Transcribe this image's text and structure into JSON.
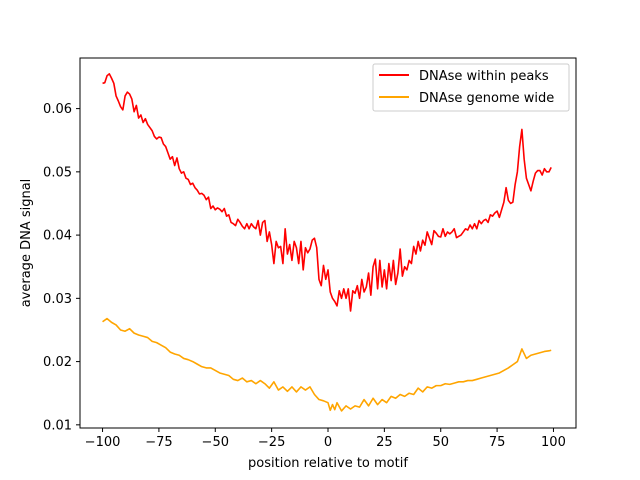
{
  "chart_data": {
    "type": "line",
    "title": "",
    "xlabel": "position relative to motif",
    "ylabel": "average DNA signal",
    "xlim": [
      -110,
      110
    ],
    "ylim": [
      0.0095,
      0.068
    ],
    "xticks": [
      -100,
      -75,
      -50,
      -25,
      0,
      25,
      50,
      75,
      100
    ],
    "xtick_labels": [
      "−100",
      "−75",
      "−50",
      "−25",
      "0",
      "25",
      "50",
      "75",
      "100"
    ],
    "yticks": [
      0.01,
      0.02,
      0.03,
      0.04,
      0.05,
      0.06
    ],
    "ytick_labels": [
      "0.01",
      "0.02",
      "0.03",
      "0.04",
      "0.05",
      "0.06"
    ],
    "grid": false,
    "legend": {
      "position": "top-right"
    },
    "series": [
      {
        "name": "DNAse within peaks",
        "color": "#ff0000",
        "points": [
          [
            -100,
            0.064
          ],
          [
            -99,
            0.0641
          ],
          [
            -98,
            0.0652
          ],
          [
            -97,
            0.0655
          ],
          [
            -96,
            0.0648
          ],
          [
            -95,
            0.064
          ],
          [
            -94,
            0.062
          ],
          [
            -93,
            0.0612
          ],
          [
            -92,
            0.0603
          ],
          [
            -91,
            0.0598
          ],
          [
            -90,
            0.062
          ],
          [
            -89,
            0.0626
          ],
          [
            -88,
            0.0623
          ],
          [
            -87,
            0.0615
          ],
          [
            -86,
            0.0595
          ],
          [
            -85,
            0.0605
          ],
          [
            -84,
            0.0585
          ],
          [
            -83,
            0.059
          ],
          [
            -82,
            0.0578
          ],
          [
            -81,
            0.0584
          ],
          [
            -80,
            0.0575
          ],
          [
            -79,
            0.057
          ],
          [
            -78,
            0.0565
          ],
          [
            -77,
            0.0556
          ],
          [
            -76,
            0.0552
          ],
          [
            -75,
            0.0555
          ],
          [
            -74,
            0.0554
          ],
          [
            -73,
            0.0544
          ],
          [
            -72,
            0.054
          ],
          [
            -71,
            0.053
          ],
          [
            -70,
            0.052
          ],
          [
            -69,
            0.0524
          ],
          [
            -68,
            0.051
          ],
          [
            -67,
            0.0522
          ],
          [
            -66,
            0.0505
          ],
          [
            -65,
            0.0498
          ],
          [
            -64,
            0.05
          ],
          [
            -63,
            0.049
          ],
          [
            -62,
            0.0488
          ],
          [
            -61,
            0.048
          ],
          [
            -60,
            0.0482
          ],
          [
            -59,
            0.0475
          ],
          [
            -58,
            0.0471
          ],
          [
            -57,
            0.0465
          ],
          [
            -56,
            0.0466
          ],
          [
            -55,
            0.0463
          ],
          [
            -54,
            0.0456
          ],
          [
            -53,
            0.046
          ],
          [
            -52,
            0.0442
          ],
          [
            -51,
            0.0446
          ],
          [
            -50,
            0.044
          ],
          [
            -49,
            0.0443
          ],
          [
            -48,
            0.0441
          ],
          [
            -47,
            0.0437
          ],
          [
            -46,
            0.0442
          ],
          [
            -45,
            0.043
          ],
          [
            -44,
            0.0432
          ],
          [
            -43,
            0.042
          ],
          [
            -42,
            0.0418
          ],
          [
            -41,
            0.0415
          ],
          [
            -40,
            0.0425
          ],
          [
            -39,
            0.042
          ],
          [
            -38,
            0.0414
          ],
          [
            -37,
            0.041
          ],
          [
            -36,
            0.0418
          ],
          [
            -35,
            0.041
          ],
          [
            -34,
            0.0418
          ],
          [
            -33,
            0.0413
          ],
          [
            -32,
            0.041
          ],
          [
            -31,
            0.0423
          ],
          [
            -30,
            0.04
          ],
          [
            -29,
            0.042
          ],
          [
            -28,
            0.0423
          ],
          [
            -27,
            0.039
          ],
          [
            -26,
            0.0405
          ],
          [
            -25,
            0.0385
          ],
          [
            -24,
            0.0355
          ],
          [
            -23,
            0.039
          ],
          [
            -22,
            0.038
          ],
          [
            -21,
            0.0382
          ],
          [
            -20,
            0.0355
          ],
          [
            -19,
            0.041
          ],
          [
            -18,
            0.037
          ],
          [
            -17,
            0.0385
          ],
          [
            -16,
            0.036
          ],
          [
            -15,
            0.039
          ],
          [
            -14,
            0.038
          ],
          [
            -13,
            0.0355
          ],
          [
            -12,
            0.039
          ],
          [
            -11,
            0.0345
          ],
          [
            -10,
            0.038
          ],
          [
            -9,
            0.0372
          ],
          [
            -8,
            0.0378
          ],
          [
            -7,
            0.0392
          ],
          [
            -6,
            0.0395
          ],
          [
            -5,
            0.038
          ],
          [
            -4,
            0.033
          ],
          [
            -3,
            0.032
          ],
          [
            -2,
            0.0352
          ],
          [
            -1,
            0.033
          ],
          [
            0,
            0.0345
          ],
          [
            1,
            0.031
          ],
          [
            2,
            0.03
          ],
          [
            3,
            0.0295
          ],
          [
            4,
            0.0288
          ],
          [
            5,
            0.0312
          ],
          [
            6,
            0.03
          ],
          [
            7,
            0.0315
          ],
          [
            8,
            0.03
          ],
          [
            9,
            0.0315
          ],
          [
            10,
            0.028
          ],
          [
            11,
            0.0312
          ],
          [
            12,
            0.0308
          ],
          [
            13,
            0.032
          ],
          [
            14,
            0.03
          ],
          [
            15,
            0.033
          ],
          [
            16,
            0.031
          ],
          [
            17,
            0.0318
          ],
          [
            18,
            0.034
          ],
          [
            19,
            0.0305
          ],
          [
            20,
            0.035
          ],
          [
            21,
            0.0362
          ],
          [
            22,
            0.0315
          ],
          [
            23,
            0.036
          ],
          [
            24,
            0.0318
          ],
          [
            25,
            0.0345
          ],
          [
            26,
            0.0315
          ],
          [
            27,
            0.0355
          ],
          [
            28,
            0.0328
          ],
          [
            29,
            0.036
          ],
          [
            30,
            0.0322
          ],
          [
            31,
            0.034
          ],
          [
            32,
            0.0378
          ],
          [
            33,
            0.0335
          ],
          [
            34,
            0.035
          ],
          [
            35,
            0.0345
          ],
          [
            36,
            0.036
          ],
          [
            37,
            0.0355
          ],
          [
            38,
            0.0382
          ],
          [
            39,
            0.037
          ],
          [
            40,
            0.039
          ],
          [
            41,
            0.0375
          ],
          [
            42,
            0.0392
          ],
          [
            43,
            0.0384
          ],
          [
            44,
            0.0405
          ],
          [
            45,
            0.0395
          ],
          [
            46,
            0.0385
          ],
          [
            47,
            0.0407
          ],
          [
            48,
            0.0403
          ],
          [
            49,
            0.0398
          ],
          [
            50,
            0.0397
          ],
          [
            51,
            0.041
          ],
          [
            52,
            0.0398
          ],
          [
            53,
            0.0405
          ],
          [
            54,
            0.0402
          ],
          [
            55,
            0.0405
          ],
          [
            56,
            0.041
          ],
          [
            57,
            0.0396
          ],
          [
            58,
            0.0398
          ],
          [
            59,
            0.04
          ],
          [
            60,
            0.0405
          ],
          [
            61,
            0.041
          ],
          [
            62,
            0.0408
          ],
          [
            63,
            0.0416
          ],
          [
            64,
            0.041
          ],
          [
            65,
            0.0418
          ],
          [
            66,
            0.041
          ],
          [
            67,
            0.0423
          ],
          [
            68,
            0.0418
          ],
          [
            69,
            0.0423
          ],
          [
            70,
            0.0425
          ],
          [
            71,
            0.042
          ],
          [
            72,
            0.0432
          ],
          [
            73,
            0.043
          ],
          [
            74,
            0.0435
          ],
          [
            75,
            0.0438
          ],
          [
            76,
            0.0428
          ],
          [
            77,
            0.044
          ],
          [
            78,
            0.0452
          ],
          [
            79,
            0.0475
          ],
          [
            80,
            0.0455
          ],
          [
            81,
            0.045
          ],
          [
            82,
            0.0452
          ],
          [
            83,
            0.048
          ],
          [
            84,
            0.05
          ],
          [
            85,
            0.054
          ],
          [
            86,
            0.0567
          ],
          [
            87,
            0.052
          ],
          [
            88,
            0.049
          ],
          [
            89,
            0.048
          ],
          [
            90,
            0.047
          ],
          [
            91,
            0.0485
          ],
          [
            92,
            0.0498
          ],
          [
            93,
            0.0502
          ],
          [
            94,
            0.0502
          ],
          [
            95,
            0.0495
          ],
          [
            96,
            0.0505
          ],
          [
            97,
            0.05
          ],
          [
            98,
            0.05
          ],
          [
            99,
            0.0507
          ]
        ]
      },
      {
        "name": "DNAse genome wide",
        "color": "#ffa500",
        "points": [
          [
            -100,
            0.0263
          ],
          [
            -98,
            0.0268
          ],
          [
            -96,
            0.0262
          ],
          [
            -94,
            0.0258
          ],
          [
            -92,
            0.025
          ],
          [
            -90,
            0.0248
          ],
          [
            -88,
            0.0252
          ],
          [
            -86,
            0.0245
          ],
          [
            -84,
            0.0242
          ],
          [
            -82,
            0.024
          ],
          [
            -80,
            0.0238
          ],
          [
            -78,
            0.0232
          ],
          [
            -76,
            0.023
          ],
          [
            -74,
            0.0226
          ],
          [
            -72,
            0.0222
          ],
          [
            -70,
            0.0215
          ],
          [
            -68,
            0.0212
          ],
          [
            -66,
            0.021
          ],
          [
            -64,
            0.0205
          ],
          [
            -62,
            0.0203
          ],
          [
            -60,
            0.02
          ],
          [
            -58,
            0.0196
          ],
          [
            -56,
            0.0192
          ],
          [
            -54,
            0.019
          ],
          [
            -52,
            0.019
          ],
          [
            -50,
            0.0186
          ],
          [
            -48,
            0.0182
          ],
          [
            -46,
            0.018
          ],
          [
            -44,
            0.0178
          ],
          [
            -42,
            0.0172
          ],
          [
            -40,
            0.017
          ],
          [
            -38,
            0.0174
          ],
          [
            -36,
            0.0168
          ],
          [
            -34,
            0.017
          ],
          [
            -32,
            0.0165
          ],
          [
            -30,
            0.017
          ],
          [
            -28,
            0.0165
          ],
          [
            -26,
            0.0158
          ],
          [
            -24,
            0.0168
          ],
          [
            -22,
            0.0155
          ],
          [
            -20,
            0.016
          ],
          [
            -18,
            0.0153
          ],
          [
            -16,
            0.016
          ],
          [
            -14,
            0.0152
          ],
          [
            -12,
            0.016
          ],
          [
            -10,
            0.0155
          ],
          [
            -8,
            0.016
          ],
          [
            -6,
            0.0148
          ],
          [
            -4,
            0.014
          ],
          [
            -2,
            0.0138
          ],
          [
            0,
            0.0135
          ],
          [
            1,
            0.0123
          ],
          [
            2,
            0.0132
          ],
          [
            3,
            0.0124
          ],
          [
            4,
            0.0135
          ],
          [
            6,
            0.0122
          ],
          [
            8,
            0.013
          ],
          [
            10,
            0.0125
          ],
          [
            12,
            0.013
          ],
          [
            14,
            0.0128
          ],
          [
            16,
            0.014
          ],
          [
            18,
            0.013
          ],
          [
            20,
            0.0142
          ],
          [
            22,
            0.0132
          ],
          [
            24,
            0.014
          ],
          [
            26,
            0.0135
          ],
          [
            28,
            0.0145
          ],
          [
            30,
            0.0142
          ],
          [
            32,
            0.0148
          ],
          [
            34,
            0.0145
          ],
          [
            36,
            0.015
          ],
          [
            38,
            0.0148
          ],
          [
            40,
            0.0158
          ],
          [
            42,
            0.0152
          ],
          [
            44,
            0.016
          ],
          [
            46,
            0.0158
          ],
          [
            48,
            0.0162
          ],
          [
            50,
            0.0162
          ],
          [
            52,
            0.0165
          ],
          [
            54,
            0.0164
          ],
          [
            56,
            0.0166
          ],
          [
            58,
            0.0168
          ],
          [
            60,
            0.0168
          ],
          [
            62,
            0.017
          ],
          [
            64,
            0.017
          ],
          [
            66,
            0.0172
          ],
          [
            68,
            0.0174
          ],
          [
            70,
            0.0176
          ],
          [
            72,
            0.0178
          ],
          [
            74,
            0.018
          ],
          [
            76,
            0.0182
          ],
          [
            78,
            0.0186
          ],
          [
            80,
            0.019
          ],
          [
            82,
            0.0195
          ],
          [
            84,
            0.02
          ],
          [
            85,
            0.021
          ],
          [
            86,
            0.022
          ],
          [
            88,
            0.0205
          ],
          [
            90,
            0.021
          ],
          [
            92,
            0.0212
          ],
          [
            94,
            0.0214
          ],
          [
            96,
            0.0216
          ],
          [
            98,
            0.0217
          ],
          [
            99,
            0.0218
          ]
        ]
      }
    ]
  }
}
